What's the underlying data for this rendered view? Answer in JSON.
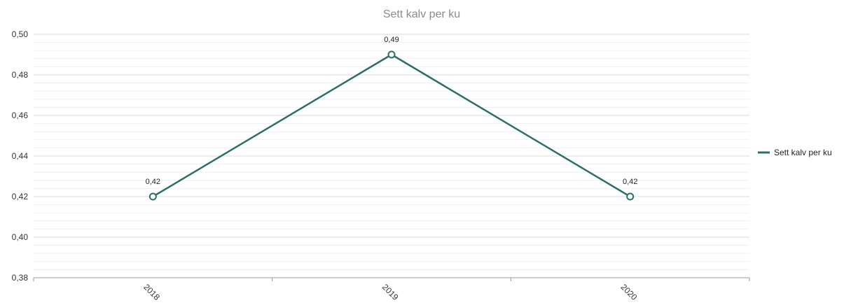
{
  "chart_data": {
    "type": "line",
    "title": "Sett kalv per ku",
    "xlabel": "",
    "ylabel": "",
    "categories": [
      "2018",
      "2019",
      "2020"
    ],
    "series": [
      {
        "name": "Sett kalv per ku",
        "values": [
          0.42,
          0.49,
          0.42
        ],
        "data_labels": [
          "0,42",
          "0,49",
          "0,42"
        ],
        "color": "#2e6e6a"
      }
    ],
    "ylim": [
      0.38,
      0.5
    ],
    "yticks": [
      {
        "value": 0.38,
        "label": "0,38"
      },
      {
        "value": 0.4,
        "label": "0,40"
      },
      {
        "value": 0.42,
        "label": "0,42"
      },
      {
        "value": 0.44,
        "label": "0,44"
      },
      {
        "value": 0.46,
        "label": "0,46"
      },
      {
        "value": 0.48,
        "label": "0,48"
      },
      {
        "value": 0.5,
        "label": "0,50"
      }
    ],
    "minor_grid_step": 0.004,
    "grid": true,
    "legend": "right",
    "x_tick_rotation": "45deg"
  },
  "colors": {
    "series": "#2e6e6a",
    "grid_major": "#d9d9d9",
    "grid_minor": "#efefef",
    "axis": "#999999",
    "title": "#8a8a8a"
  }
}
